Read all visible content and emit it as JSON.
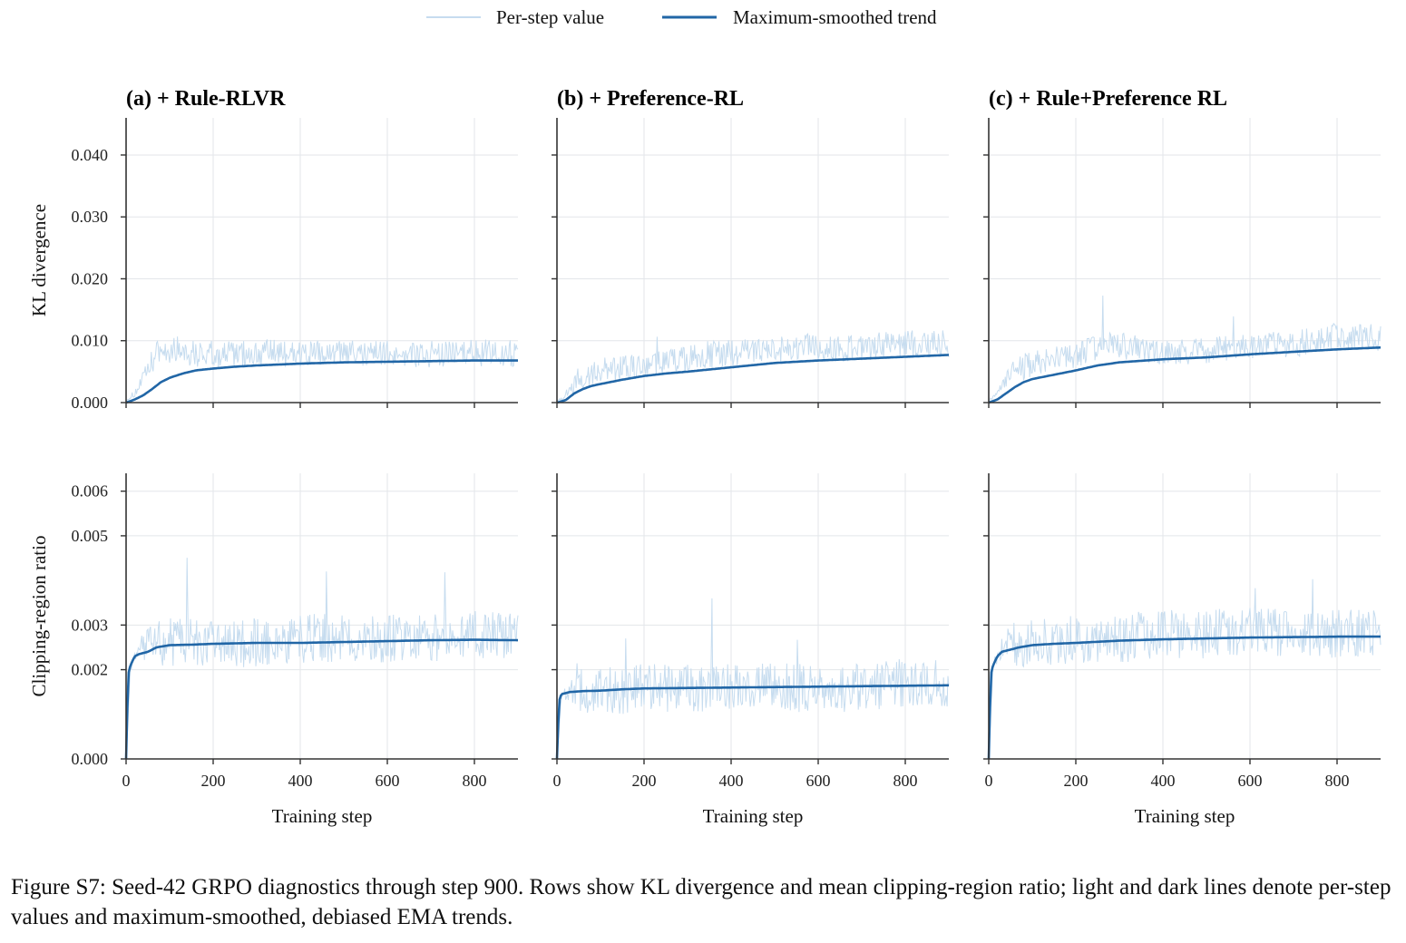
{
  "legend": {
    "per_step_label": "Per-step value",
    "trend_label": "Maximum-smoothed trend"
  },
  "caption": "Figure S7: Seed-42 GRPO diagnostics through step 900. Rows show KL divergence and mean clipping-region ratio; light and dark lines denote per-step values and maximum-smoothed, debiased EMA trends.",
  "colors": {
    "per_step": "#c6dcef",
    "trend": "#2166a6",
    "grid": "#e3e6ea",
    "axis": "#333333"
  },
  "chart_data": [
    {
      "type": "line",
      "title": "(a) + Rule-RLVR",
      "xlabel": "",
      "ylabel": "KL divergence",
      "xlim": [
        0,
        900
      ],
      "ylim": [
        0,
        0.046
      ],
      "xticks": [
        "0",
        "200",
        "400",
        "600",
        "800"
      ],
      "yticks": [
        "0.000",
        "0.010",
        "0.020",
        "0.030",
        "0.040"
      ],
      "series": [
        {
          "name": "Per-step value",
          "x": [
            0,
            20,
            50,
            70,
            100,
            130,
            150,
            200,
            250,
            300,
            350,
            400,
            450,
            500,
            550,
            600,
            650,
            700,
            750,
            800,
            850,
            900
          ],
          "y": [
            0.0003,
            0.0015,
            0.005,
            0.008,
            0.0085,
            0.0088,
            0.008,
            0.0078,
            0.0078,
            0.008,
            0.008,
            0.0078,
            0.0078,
            0.008,
            0.0078,
            0.008,
            0.008,
            0.0078,
            0.0078,
            0.008,
            0.008,
            0.008
          ]
        },
        {
          "name": "Maximum-smoothed trend",
          "x": [
            0,
            20,
            40,
            60,
            80,
            100,
            130,
            160,
            200,
            250,
            300,
            400,
            500,
            600,
            700,
            800,
            900
          ],
          "y": [
            0,
            0.0005,
            0.0012,
            0.0022,
            0.0033,
            0.004,
            0.0047,
            0.0052,
            0.0055,
            0.0058,
            0.006,
            0.0063,
            0.0065,
            0.0066,
            0.0067,
            0.0068,
            0.0068
          ]
        }
      ]
    },
    {
      "type": "line",
      "title": "(b) + Preference-RL",
      "xlabel": "",
      "ylabel": "",
      "xlim": [
        0,
        900
      ],
      "ylim": [
        0,
        0.046
      ],
      "xticks": [
        "0",
        "200",
        "400",
        "600",
        "800"
      ],
      "yticks": [
        "0.000",
        "0.010",
        "0.020",
        "0.030",
        "0.040"
      ],
      "series": [
        {
          "name": "Per-step value",
          "x": [
            0,
            20,
            50,
            100,
            150,
            200,
            250,
            300,
            350,
            400,
            450,
            500,
            550,
            600,
            650,
            700,
            750,
            800,
            850,
            900
          ],
          "y": [
            0.0003,
            0.0012,
            0.004,
            0.005,
            0.0058,
            0.0062,
            0.0068,
            0.007,
            0.0078,
            0.008,
            0.0085,
            0.0085,
            0.009,
            0.009,
            0.0088,
            0.009,
            0.0092,
            0.0095,
            0.0095,
            0.0095
          ]
        },
        {
          "name": "Maximum-smoothed trend",
          "x": [
            0,
            20,
            40,
            60,
            80,
            100,
            150,
            200,
            250,
            300,
            400,
            500,
            600,
            700,
            800,
            900
          ],
          "y": [
            0,
            0.0004,
            0.0015,
            0.0022,
            0.0027,
            0.003,
            0.0037,
            0.0043,
            0.0047,
            0.005,
            0.0057,
            0.0064,
            0.0068,
            0.0071,
            0.0074,
            0.0077
          ]
        }
      ]
    },
    {
      "type": "line",
      "title": "(c) + Rule+Preference RL",
      "xlabel": "",
      "ylabel": "",
      "xlim": [
        0,
        900
      ],
      "ylim": [
        0,
        0.046
      ],
      "xticks": [
        "0",
        "200",
        "400",
        "600",
        "800"
      ],
      "yticks": [
        "0.000",
        "0.010",
        "0.020",
        "0.030",
        "0.040"
      ],
      "series": [
        {
          "name": "Per-step value",
          "x": [
            0,
            20,
            50,
            100,
            150,
            200,
            250,
            300,
            350,
            400,
            450,
            500,
            550,
            600,
            650,
            700,
            750,
            800,
            850,
            900
          ],
          "y": [
            0.0004,
            0.0015,
            0.005,
            0.0062,
            0.0068,
            0.0075,
            0.009,
            0.0092,
            0.0085,
            0.008,
            0.0082,
            0.0085,
            0.0088,
            0.009,
            0.0092,
            0.0095,
            0.01,
            0.011,
            0.0105,
            0.0105
          ]
        },
        {
          "name": "Maximum-smoothed trend",
          "x": [
            0,
            20,
            40,
            60,
            80,
            100,
            150,
            200,
            250,
            300,
            400,
            500,
            600,
            700,
            800,
            900
          ],
          "y": [
            0,
            0.0005,
            0.0015,
            0.0025,
            0.0033,
            0.0038,
            0.0045,
            0.0052,
            0.006,
            0.0065,
            0.007,
            0.0073,
            0.0078,
            0.0082,
            0.0086,
            0.0089
          ]
        }
      ]
    },
    {
      "type": "line",
      "title": "",
      "xlabel": "Training step",
      "ylabel": "Clipping-region ratio",
      "xlim": [
        0,
        900
      ],
      "ylim": [
        0,
        0.0064
      ],
      "xticks": [
        "0",
        "200",
        "400",
        "600",
        "800"
      ],
      "yticks": [
        "0.000",
        "0.002",
        "0.003",
        "0.005",
        "0.006"
      ],
      "series": [
        {
          "name": "Per-step value",
          "x": [
            0,
            10,
            30,
            60,
            100,
            200,
            300,
            400,
            500,
            600,
            700,
            800,
            900
          ],
          "y": [
            0,
            0.002,
            0.0026,
            0.0025,
            0.0026,
            0.0026,
            0.0026,
            0.0027,
            0.0027,
            0.0027,
            0.0027,
            0.0028,
            0.0027
          ]
        },
        {
          "name": "Maximum-smoothed trend",
          "x": [
            0,
            5,
            10,
            20,
            30,
            50,
            70,
            100,
            150,
            200,
            300,
            400,
            500,
            600,
            700,
            800,
            900
          ],
          "y": [
            0,
            0.0019,
            0.0021,
            0.0023,
            0.00235,
            0.0024,
            0.0025,
            0.00255,
            0.00256,
            0.00258,
            0.0026,
            0.0026,
            0.00262,
            0.00264,
            0.00266,
            0.00267,
            0.00266
          ]
        }
      ]
    },
    {
      "type": "line",
      "title": "",
      "xlabel": "Training step",
      "ylabel": "",
      "xlim": [
        0,
        900
      ],
      "ylim": [
        0,
        0.0064
      ],
      "xticks": [
        "0",
        "200",
        "400",
        "600",
        "800"
      ],
      "yticks": [
        "0.000",
        "0.002",
        "0.003",
        "0.005",
        "0.006"
      ],
      "series": [
        {
          "name": "Per-step value",
          "x": [
            0,
            10,
            30,
            60,
            100,
            200,
            300,
            400,
            500,
            600,
            700,
            800,
            900
          ],
          "y": [
            0,
            0.0014,
            0.0015,
            0.0015,
            0.0015,
            0.0016,
            0.0016,
            0.0016,
            0.0016,
            0.0016,
            0.0016,
            0.0017,
            0.0017
          ]
        },
        {
          "name": "Maximum-smoothed trend",
          "x": [
            0,
            5,
            10,
            30,
            60,
            100,
            150,
            200,
            300,
            400,
            500,
            600,
            700,
            800,
            900
          ],
          "y": [
            0,
            0.0013,
            0.00145,
            0.0015,
            0.00152,
            0.00153,
            0.00156,
            0.00158,
            0.00159,
            0.0016,
            0.00161,
            0.00162,
            0.00163,
            0.00164,
            0.00165
          ]
        }
      ]
    },
    {
      "type": "line",
      "title": "",
      "xlabel": "Training step",
      "ylabel": "",
      "xlim": [
        0,
        900
      ],
      "ylim": [
        0,
        0.0064
      ],
      "xticks": [
        "0",
        "200",
        "400",
        "600",
        "800"
      ],
      "yticks": [
        "0.000",
        "0.002",
        "0.003",
        "0.005",
        "0.006"
      ],
      "series": [
        {
          "name": "Per-step value",
          "x": [
            0,
            10,
            30,
            60,
            100,
            200,
            300,
            400,
            500,
            600,
            700,
            800,
            900
          ],
          "y": [
            0,
            0.0021,
            0.0025,
            0.0026,
            0.0026,
            0.0027,
            0.0027,
            0.0028,
            0.0028,
            0.0029,
            0.0028,
            0.0028,
            0.0028
          ]
        },
        {
          "name": "Maximum-smoothed trend",
          "x": [
            0,
            5,
            10,
            20,
            30,
            50,
            70,
            100,
            150,
            200,
            300,
            400,
            500,
            600,
            700,
            800,
            900
          ],
          "y": [
            0,
            0.0019,
            0.0021,
            0.0023,
            0.0024,
            0.00245,
            0.0025,
            0.00255,
            0.00258,
            0.0026,
            0.00265,
            0.00268,
            0.0027,
            0.00272,
            0.00273,
            0.00274,
            0.00274
          ]
        }
      ]
    }
  ]
}
